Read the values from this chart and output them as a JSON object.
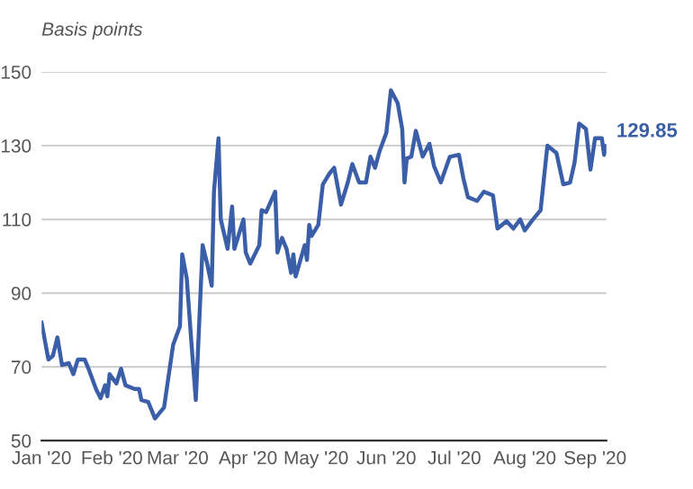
{
  "chart_data": {
    "type": "line",
    "ylabel": "Basis points",
    "x": [
      "2020-01-01",
      "2020-01-04",
      "2020-01-06",
      "2020-01-08",
      "2020-01-10",
      "2020-01-13",
      "2020-01-15",
      "2020-01-17",
      "2020-01-20",
      "2020-01-22",
      "2020-01-25",
      "2020-01-27",
      "2020-01-29",
      "2020-01-30",
      "2020-01-31",
      "2020-02-03",
      "2020-02-05",
      "2020-02-07",
      "2020-02-11",
      "2020-02-13",
      "2020-02-14",
      "2020-02-17",
      "2020-02-20",
      "2020-02-22",
      "2020-02-24",
      "2020-02-28",
      "2020-03-02",
      "2020-03-03",
      "2020-03-05",
      "2020-03-07",
      "2020-03-09",
      "2020-03-12",
      "2020-03-14",
      "2020-03-16",
      "2020-03-17",
      "2020-03-19",
      "2020-03-20",
      "2020-03-23",
      "2020-03-25",
      "2020-03-26",
      "2020-03-30",
      "2020-03-31",
      "2020-04-02",
      "2020-04-06",
      "2020-04-07",
      "2020-04-09",
      "2020-04-13",
      "2020-04-14",
      "2020-04-16",
      "2020-04-18",
      "2020-04-20",
      "2020-04-21",
      "2020-04-22",
      "2020-04-26",
      "2020-04-27",
      "2020-04-28",
      "2020-04-29",
      "2020-05-02",
      "2020-05-04",
      "2020-05-06",
      "2020-05-07",
      "2020-05-09",
      "2020-05-12",
      "2020-05-15",
      "2020-05-17",
      "2020-05-20",
      "2020-05-23",
      "2020-05-25",
      "2020-05-27",
      "2020-05-29",
      "2020-06-01",
      "2020-06-03",
      "2020-06-06",
      "2020-06-08",
      "2020-06-09",
      "2020-06-10",
      "2020-06-12",
      "2020-06-14",
      "2020-06-17",
      "2020-06-20",
      "2020-06-22",
      "2020-06-25",
      "2020-06-29",
      "2020-07-03",
      "2020-07-05",
      "2020-07-07",
      "2020-07-11",
      "2020-07-14",
      "2020-07-18",
      "2020-07-20",
      "2020-07-24",
      "2020-07-27",
      "2020-07-30",
      "2020-08-01",
      "2020-08-04",
      "2020-08-08",
      "2020-08-11",
      "2020-08-15",
      "2020-08-18",
      "2020-08-21",
      "2020-08-23",
      "2020-08-25",
      "2020-08-28",
      "2020-08-30",
      "2020-09-01",
      "2020-09-04",
      "2020-09-05",
      "2020-09-06"
    ],
    "series": [
      {
        "color": "#3a5fa8",
        "values": [
          82,
          72,
          73,
          78,
          70.5,
          71,
          68,
          72,
          72,
          69,
          64,
          61.5,
          65,
          62,
          68,
          65.5,
          69.5,
          65,
          64,
          64,
          61,
          60.5,
          56,
          57.5,
          59,
          76,
          81,
          100.5,
          94,
          77,
          61,
          103,
          98,
          92,
          117.5,
          132,
          110,
          102,
          113.5,
          102,
          110,
          101,
          98,
          103,
          112.5,
          112,
          117.5,
          101,
          105,
          102,
          95.5,
          100.5,
          94.5,
          103,
          99,
          108.5,
          105.5,
          108.5,
          119.5,
          121.5,
          122.5,
          124,
          114,
          120,
          125,
          120,
          120,
          127,
          124,
          128.5,
          133.5,
          145,
          141.5,
          134.5,
          120,
          126.5,
          127,
          134,
          127,
          130.5,
          124.5,
          120,
          127,
          127.5,
          121,
          116,
          115,
          117.5,
          116.5,
          107.5,
          109.5,
          107.5,
          110,
          107,
          109.5,
          112.5,
          130,
          128,
          119.5,
          120,
          125.5,
          136,
          134.5,
          123.5,
          132,
          132,
          127.5,
          129.85
        ]
      }
    ],
    "annotations": [
      {
        "text": "129.85",
        "x": "2020-09-06",
        "y": 129.85
      }
    ],
    "xlim": [
      "2020-01-01",
      "2020-09-06"
    ],
    "xticks": [
      {
        "value": "2020-01-01",
        "label": "Jan '20"
      },
      {
        "value": "2020-02-01",
        "label": "Feb '20"
      },
      {
        "value": "2020-03-01",
        "label": "Mar '20"
      },
      {
        "value": "2020-04-01",
        "label": "Apr '20"
      },
      {
        "value": "2020-05-01",
        "label": "May '20"
      },
      {
        "value": "2020-06-01",
        "label": "Jun '20"
      },
      {
        "value": "2020-07-01",
        "label": "Jul '20"
      },
      {
        "value": "2020-08-01",
        "label": "Aug '20"
      },
      {
        "value": "2020-09-01",
        "label": "Sep '20"
      }
    ],
    "ylim": [
      50,
      150
    ],
    "yticks": [
      50,
      70,
      90,
      110,
      130,
      150
    ],
    "grid": "y",
    "line_style": "solid",
    "marker": "none"
  }
}
